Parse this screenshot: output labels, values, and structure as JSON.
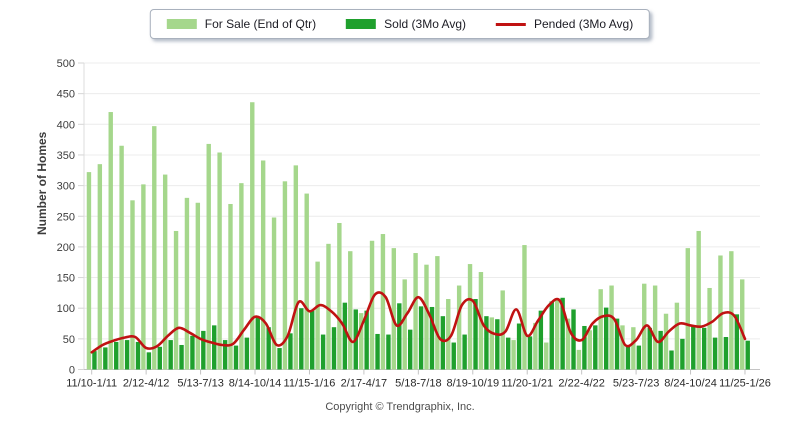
{
  "legend": {
    "items": [
      {
        "label": "For Sale (End of Qtr)",
        "color": "#a5d78c",
        "type": "bar"
      },
      {
        "label": "Sold (3Mo Avg)",
        "color": "#1fa02d",
        "type": "bar"
      },
      {
        "label": "Pended (3Mo Avg)",
        "color": "#c01212",
        "type": "line"
      }
    ]
  },
  "footer": {
    "copyright": "Copyright © Trendgraphix, Inc."
  },
  "chart_data": {
    "type": "bar",
    "title": "",
    "xlabel": "",
    "ylabel": "Number of Homes",
    "ylim": [
      0,
      500
    ],
    "ytick_interval": 50,
    "grid": true,
    "legend_position": "top-center",
    "n_groups": 61,
    "x_tick_indices": [
      0,
      5,
      10,
      15,
      20,
      25,
      30,
      35,
      40,
      45,
      50,
      55,
      60
    ],
    "x_tick_labels": [
      "11/10-1/11",
      "2/12-4/12",
      "5/13-7/13",
      "8/14-10/14",
      "11/15-1/16",
      "2/17-4/17",
      "5/18-7/18",
      "8/19-10/19",
      "11/20-1/21",
      "2/22-4/22",
      "5/23-7/23",
      "8/24-10/24",
      "11/25-1/26"
    ],
    "series": [
      {
        "name": "For Sale (End of Qtr)",
        "render": "bar",
        "color": "#a5d78c",
        "values": [
          322,
          335,
          420,
          365,
          276,
          302,
          397,
          318,
          226,
          280,
          272,
          368,
          354,
          270,
          304,
          436,
          341,
          248,
          307,
          333,
          287,
          176,
          205,
          239,
          193,
          92,
          210,
          221,
          198,
          147,
          190,
          171,
          185,
          115,
          137,
          172,
          159,
          85,
          129,
          48,
          203,
          76,
          44,
          113,
          83,
          32,
          64,
          131,
          137,
          72,
          69,
          140,
          137,
          91,
          109,
          198,
          226,
          133,
          186,
          193,
          147
        ]
      },
      {
        "name": "Sold (3Mo Avg)",
        "render": "bar",
        "color": "#1fa02d",
        "values": [
          30,
          36,
          45,
          48,
          45,
          28,
          37,
          48,
          40,
          55,
          63,
          72,
          48,
          39,
          52,
          85,
          69,
          35,
          59,
          100,
          96,
          57,
          69,
          109,
          98,
          96,
          58,
          57,
          108,
          65,
          103,
          102,
          87,
          44,
          57,
          115,
          87,
          82,
          52,
          75,
          54,
          96,
          111,
          117,
          98,
          71,
          72,
          101,
          83,
          39,
          39,
          68,
          63,
          31,
          50,
          71,
          68,
          52,
          53,
          90,
          47
        ]
      },
      {
        "name": "Pended (3Mo Avg)",
        "render": "line",
        "color": "#c01212",
        "values": [
          28,
          40,
          47,
          52,
          53,
          35,
          38,
          55,
          68,
          60,
          50,
          44,
          40,
          42,
          65,
          86,
          75,
          40,
          55,
          110,
          95,
          105,
          95,
          75,
          45,
          80,
          122,
          118,
          72,
          92,
          118,
          90,
          50,
          55,
          105,
          112,
          72,
          58,
          62,
          98,
          55,
          80,
          105,
          112,
          60,
          48,
          75,
          87,
          82,
          40,
          48,
          72,
          45,
          62,
          75,
          72,
          70,
          78,
          92,
          88,
          50
        ]
      }
    ]
  }
}
